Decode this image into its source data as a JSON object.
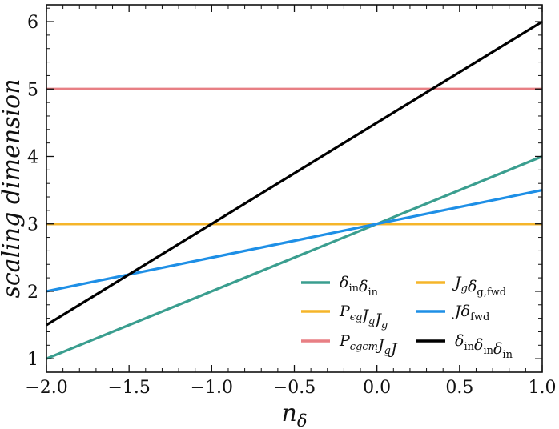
{
  "chart_data": {
    "type": "line",
    "xlabel": "nδ",
    "ylabel": "scaling dimension",
    "xlim": [
      -2.0,
      1.0
    ],
    "ylim": [
      0.8,
      6.25
    ],
    "x_ticks": [
      -2.0,
      -1.5,
      -1.0,
      -0.5,
      0.0,
      0.5,
      1.0
    ],
    "x_tick_labels": [
      "−2.0",
      "−1.5",
      "−1.0",
      "−0.5",
      "0.0",
      "0.5",
      "1.0"
    ],
    "y_ticks": [
      1,
      2,
      3,
      4,
      5,
      6
    ],
    "y_tick_labels": [
      "1",
      "2",
      "3",
      "4",
      "5",
      "6"
    ],
    "grid": false,
    "legend_position": "bottom-right",
    "legend_columns": 2,
    "series": [
      {
        "name": "δinδin",
        "color": "#3a9e8f",
        "x": [
          -2.0,
          1.0
        ],
        "y": [
          1.0,
          4.0
        ]
      },
      {
        "name": "PϵgJgJg",
        "color": "#f5b52a",
        "x": [
          -2.0,
          1.0
        ],
        "y": [
          3.0,
          3.0
        ]
      },
      {
        "name": "PϵgϵmJgJ",
        "color": "#e87f84",
        "x": [
          -2.0,
          1.0
        ],
        "y": [
          5.0,
          5.0
        ]
      },
      {
        "name": "Jgδg,fwd",
        "color": "#f5b52a",
        "x": [
          -2.0,
          1.0
        ],
        "y": [
          3.0,
          3.0
        ]
      },
      {
        "name": "Jδfwd",
        "color": "#1e8fe6",
        "x": [
          -2.0,
          1.0
        ],
        "y": [
          2.0,
          3.5
        ]
      },
      {
        "name": "δinδinδin",
        "color": "#000000",
        "x": [
          -2.0,
          1.0
        ],
        "y": [
          1.5,
          6.0
        ]
      }
    ]
  }
}
